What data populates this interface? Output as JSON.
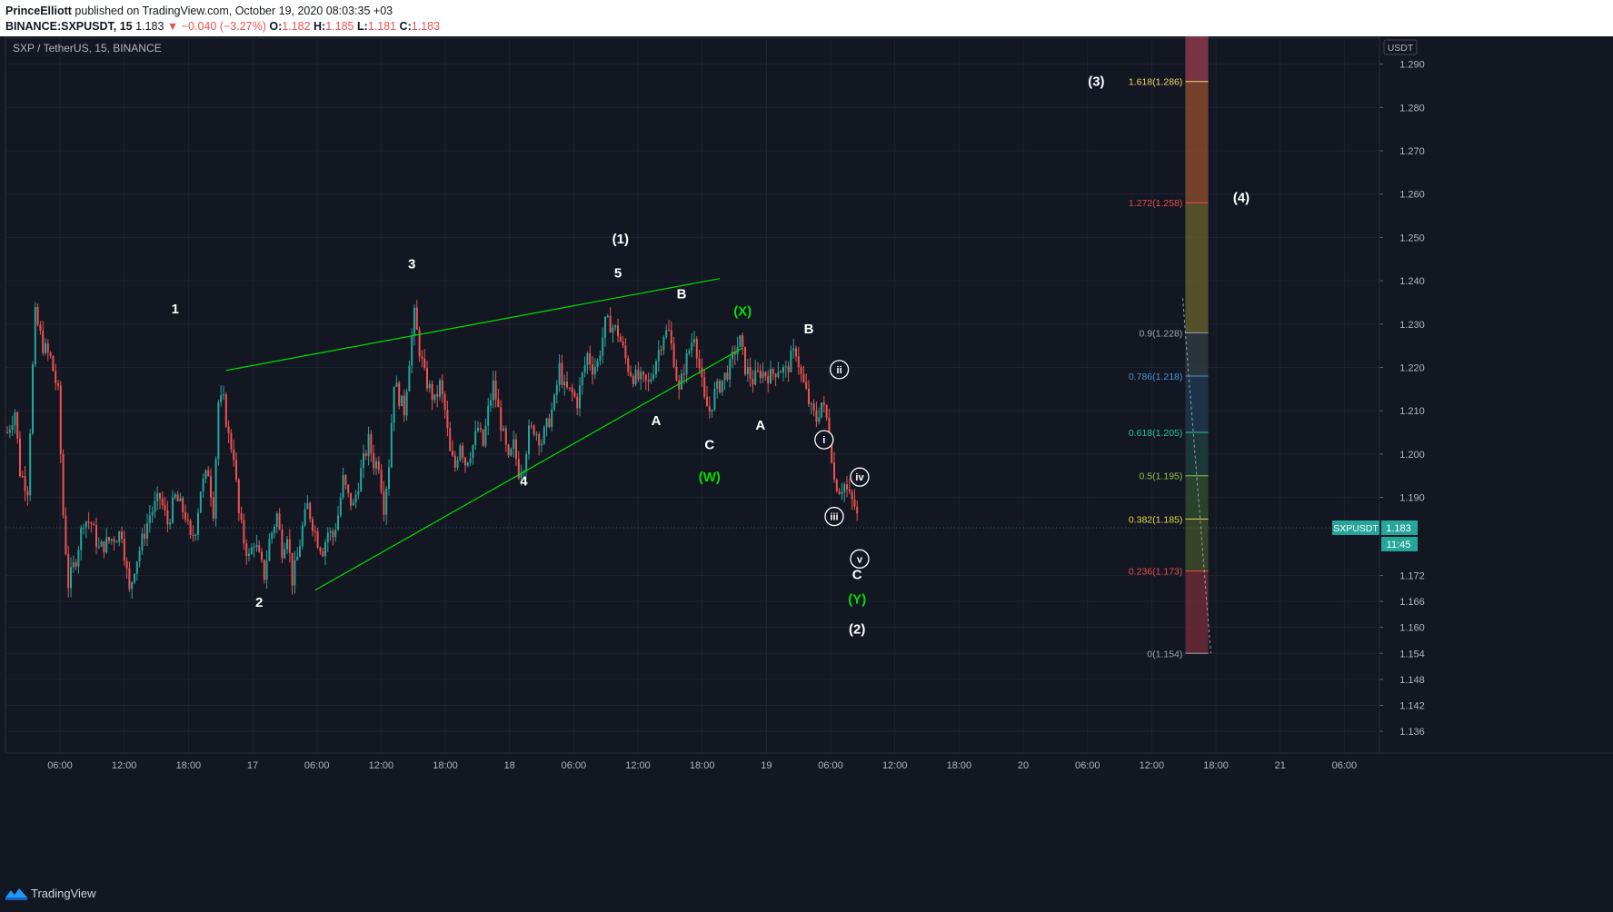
{
  "header": {
    "author": "PrinceElliott",
    "published": "published on TradingView.com, October 19, 2020 08:03:35 +03",
    "symbol": "BINANCE:SXPUSDT, 15",
    "last": "1.183",
    "change": "−0.040 (−3.27%)",
    "o_label": "O:",
    "o": "1.182",
    "h_label": "H:",
    "h": "1.185",
    "l_label": "L:",
    "l": "1.181",
    "c_label": "C:",
    "c": "1.183"
  },
  "chart_title": "SXP / TetherUS, 15, BINANCE",
  "footer": {
    "brand": "TradingView"
  },
  "colors": {
    "background": "#131722",
    "grid": "#1f2330",
    "up": "#26a69a",
    "down": "#ef5350",
    "wedge": "#00e000",
    "label": "#ffffff",
    "green_label": "#00e000"
  },
  "chart_data": {
    "type": "candlestick",
    "symbol": "SXPUSDT",
    "currency": "USDT",
    "interval": "15",
    "ylim": [
      1.131,
      1.296
    ],
    "y_ticks": [
      1.29,
      1.28,
      1.27,
      1.26,
      1.25,
      1.24,
      1.23,
      1.22,
      1.21,
      1.2,
      1.19,
      1.172,
      1.166,
      1.16,
      1.154,
      1.148,
      1.142,
      1.136
    ],
    "x_ticks": [
      "06:00",
      "12:00",
      "18:00",
      "17",
      "06:00",
      "12:00",
      "18:00",
      "18",
      "06:00",
      "12:00",
      "18:00",
      "19",
      "06:00",
      "12:00",
      "18:00",
      "20",
      "06:00",
      "12:00",
      "18:00",
      "21",
      "06:00"
    ],
    "last_price": "1.183",
    "countdown": "11:45",
    "anchors": [
      [
        0,
        1.205
      ],
      [
        3,
        1.21
      ],
      [
        5,
        1.196
      ],
      [
        8,
        1.192
      ],
      [
        10,
        1.22
      ],
      [
        11,
        1.232
      ],
      [
        14,
        1.225
      ],
      [
        17,
        1.222
      ],
      [
        20,
        1.214
      ],
      [
        22,
        1.186
      ],
      [
        24,
        1.17
      ],
      [
        27,
        1.176
      ],
      [
        30,
        1.185
      ],
      [
        33,
        1.184
      ],
      [
        36,
        1.178
      ],
      [
        40,
        1.18
      ],
      [
        45,
        1.182
      ],
      [
        48,
        1.168
      ],
      [
        50,
        1.174
      ],
      [
        53,
        1.18
      ],
      [
        56,
        1.186
      ],
      [
        58,
        1.188
      ],
      [
        60,
        1.19
      ],
      [
        63,
        1.184
      ],
      [
        66,
        1.19
      ],
      [
        70,
        1.186
      ],
      [
        72,
        1.18
      ],
      [
        74,
        1.183
      ],
      [
        76,
        1.192
      ],
      [
        79,
        1.196
      ],
      [
        81,
        1.187
      ],
      [
        83,
        1.212
      ],
      [
        85,
        1.212
      ],
      [
        87,
        1.204
      ],
      [
        89,
        1.2
      ],
      [
        91,
        1.186
      ],
      [
        93,
        1.18
      ],
      [
        95,
        1.176
      ],
      [
        97,
        1.18
      ],
      [
        99,
        1.176
      ],
      [
        101,
        1.172
      ],
      [
        103,
        1.18
      ],
      [
        106,
        1.186
      ],
      [
        108,
        1.178
      ],
      [
        110,
        1.182
      ],
      [
        112,
        1.171
      ],
      [
        114,
        1.176
      ],
      [
        116,
        1.183
      ],
      [
        118,
        1.188
      ],
      [
        120,
        1.184
      ],
      [
        122,
        1.18
      ],
      [
        124,
        1.178
      ],
      [
        126,
        1.182
      ],
      [
        128,
        1.181
      ],
      [
        130,
        1.186
      ],
      [
        132,
        1.194
      ],
      [
        134,
        1.19
      ],
      [
        136,
        1.188
      ],
      [
        139,
        1.196
      ],
      [
        142,
        1.203
      ],
      [
        144,
        1.198
      ],
      [
        146,
        1.198
      ],
      [
        148,
        1.188
      ],
      [
        150,
        1.198
      ],
      [
        152,
        1.217
      ],
      [
        154,
        1.213
      ],
      [
        156,
        1.21
      ],
      [
        158,
        1.222
      ],
      [
        160,
        1.232
      ],
      [
        162,
        1.224
      ],
      [
        164,
        1.218
      ],
      [
        166,
        1.215
      ],
      [
        168,
        1.212
      ],
      [
        170,
        1.216
      ],
      [
        172,
        1.21
      ],
      [
        174,
        1.2
      ],
      [
        176,
        1.197
      ],
      [
        178,
        1.203
      ],
      [
        180,
        1.198
      ],
      [
        183,
        1.202
      ],
      [
        185,
        1.206
      ],
      [
        187,
        1.202
      ],
      [
        189,
        1.21
      ],
      [
        191,
        1.216
      ],
      [
        193,
        1.21
      ],
      [
        195,
        1.204
      ],
      [
        197,
        1.198
      ],
      [
        199,
        1.202
      ],
      [
        201,
        1.196
      ],
      [
        203,
        1.198
      ],
      [
        205,
        1.205
      ],
      [
        207,
        1.206
      ],
      [
        210,
        1.203
      ],
      [
        213,
        1.208
      ],
      [
        215,
        1.212
      ],
      [
        217,
        1.22
      ],
      [
        219,
        1.215
      ],
      [
        222,
        1.214
      ],
      [
        224,
        1.212
      ],
      [
        226,
        1.218
      ],
      [
        228,
        1.223
      ],
      [
        230,
        1.22
      ],
      [
        232,
        1.221
      ],
      [
        235,
        1.23
      ],
      [
        237,
        1.23
      ],
      [
        240,
        1.228
      ],
      [
        242,
        1.224
      ],
      [
        244,
        1.22
      ],
      [
        246,
        1.218
      ],
      [
        249,
        1.217
      ],
      [
        252,
        1.216
      ],
      [
        255,
        1.222
      ],
      [
        258,
        1.228
      ],
      [
        260,
        1.228
      ],
      [
        262,
        1.222
      ],
      [
        264,
        1.214
      ],
      [
        266,
        1.22
      ],
      [
        268,
        1.224
      ],
      [
        270,
        1.228
      ],
      [
        272,
        1.22
      ],
      [
        274,
        1.212
      ],
      [
        276,
        1.21
      ],
      [
        278,
        1.214
      ],
      [
        280,
        1.216
      ],
      [
        282,
        1.218
      ],
      [
        284,
        1.22
      ],
      [
        286,
        1.224
      ],
      [
        288,
        1.226
      ],
      [
        290,
        1.22
      ],
      [
        293,
        1.217
      ],
      [
        296,
        1.219
      ],
      [
        300,
        1.218
      ],
      [
        303,
        1.22
      ],
      [
        306,
        1.219
      ],
      [
        308,
        1.222
      ],
      [
        310,
        1.224
      ],
      [
        312,
        1.218
      ],
      [
        314,
        1.214
      ],
      [
        316,
        1.21
      ],
      [
        318,
        1.208
      ],
      [
        320,
        1.212
      ],
      [
        322,
        1.208
      ],
      [
        324,
        1.2
      ],
      [
        325,
        1.194
      ],
      [
        327,
        1.192
      ],
      [
        329,
        1.193
      ],
      [
        331,
        1.19
      ],
      [
        333,
        1.188
      ],
      [
        335,
        1.183
      ]
    ],
    "annotations": {
      "wave_labels": [
        {
          "text": "1",
          "bar": 66,
          "price": 1.2325
        },
        {
          "text": "2",
          "bar": 99,
          "price": 1.1648
        },
        {
          "text": "3",
          "bar": 159,
          "price": 1.2428
        },
        {
          "text": "4",
          "bar": 203,
          "price": 1.1927
        },
        {
          "text": "5",
          "bar": 240,
          "price": 1.2408
        },
        {
          "text": "(1)",
          "bar": 241,
          "price": 1.2486
        },
        {
          "text": "A",
          "bar": 255,
          "price": 1.2067
        },
        {
          "text": "B",
          "bar": 265,
          "price": 1.2359
        },
        {
          "text": "C",
          "bar": 276,
          "price": 1.2011
        },
        {
          "text": "(W)",
          "bar": 276,
          "price": 1.1937
        },
        {
          "text": "(X)",
          "bar": 289,
          "price": 1.232
        },
        {
          "text": "A",
          "bar": 296,
          "price": 1.2056
        },
        {
          "text": "B",
          "bar": 315,
          "price": 1.2279
        },
        {
          "text": "C",
          "bar": 334,
          "price": 1.1712
        },
        {
          "text": "(Y)",
          "bar": 334,
          "price": 1.1655
        },
        {
          "text": "(2)",
          "bar": 334,
          "price": 1.1586
        },
        {
          "text": "(3)",
          "bar": 428,
          "price": 1.285
        },
        {
          "text": "(4)",
          "bar": 485,
          "price": 1.2582
        }
      ],
      "circled_labels": [
        {
          "text": "i",
          "bar": 321,
          "price": 1.2033
        },
        {
          "text": "ii",
          "bar": 327,
          "price": 1.2195
        },
        {
          "text": "iii",
          "bar": 325,
          "price": 1.1856
        },
        {
          "text": "iv",
          "bar": 335,
          "price": 1.1947
        },
        {
          "text": "v",
          "bar": 335,
          "price": 1.1758
        }
      ],
      "wedge_lines": [
        {
          "from": {
            "bar": 86,
            "price": 1.2193
          },
          "to": {
            "bar": 280,
            "price": 1.2405
          }
        },
        {
          "from": {
            "bar": 121,
            "price": 1.1686
          },
          "to": {
            "bar": 289,
            "price": 1.2245
          }
        }
      ],
      "fib_extension": {
        "bar_start": 463,
        "bar_end": 472,
        "top_price": 1.2975,
        "levels": [
          {
            "ratio": "1.618",
            "price": 1.286,
            "color": "#f5d76e"
          },
          {
            "ratio": "1.272",
            "price": 1.258,
            "color": "#e54d4d"
          },
          {
            "ratio": "0.9",
            "price": 1.228,
            "color": "#a0a4b0"
          },
          {
            "ratio": "0.786",
            "price": 1.218,
            "color": "#4a90d9"
          },
          {
            "ratio": "0.618",
            "price": 1.205,
            "color": "#26c6a0"
          },
          {
            "ratio": "0.5",
            "price": 1.195,
            "color": "#8bc34a"
          },
          {
            "ratio": "0.382",
            "price": 1.185,
            "color": "#e6d84a"
          },
          {
            "ratio": "0.236",
            "price": 1.173,
            "color": "#e54d4d"
          },
          {
            "ratio": "0",
            "price": 1.154,
            "color": "#a0a4b0"
          }
        ],
        "zones": [
          "#8b3a4a",
          "#86492d",
          "#5f5a2a",
          "#2e3a3f",
          "#203750",
          "#1d3d3c",
          "#2e4a2d",
          "#3d4b28",
          "#6b2a36"
        ]
      }
    }
  }
}
